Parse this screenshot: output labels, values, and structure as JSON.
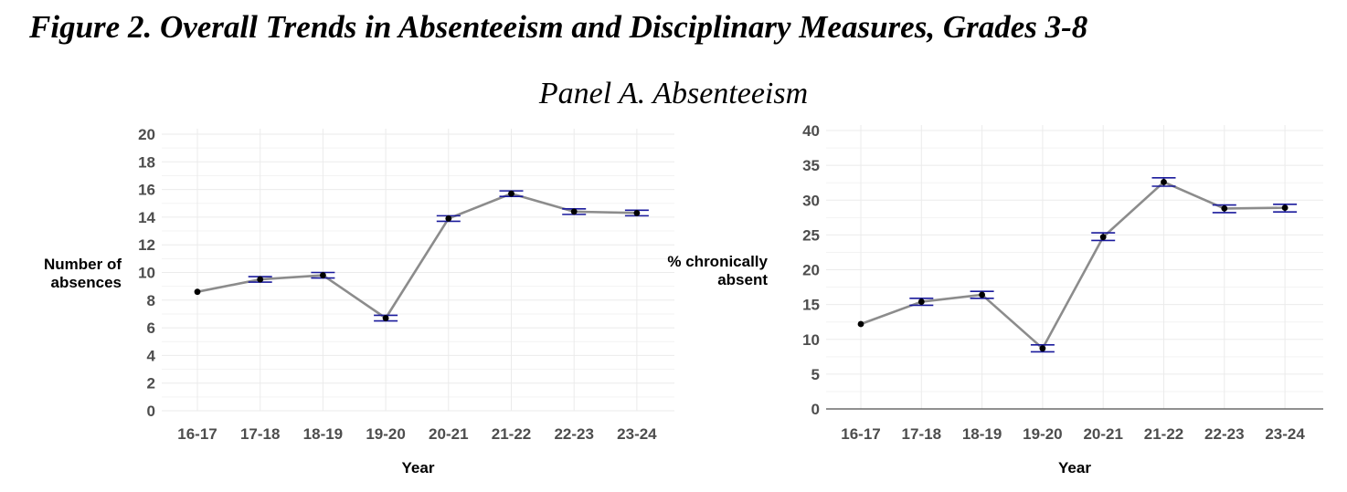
{
  "figure_title": "Figure 2. Overall Trends in Absenteeism and Disciplinary Measures, Grades 3-8",
  "panel_title": "Panel A. Absenteeism",
  "chart_data": [
    {
      "type": "line",
      "categories": [
        "16-17",
        "17-18",
        "18-19",
        "19-20",
        "20-21",
        "21-22",
        "22-23",
        "23-24"
      ],
      "series": [
        {
          "values": [
            8.6,
            9.5,
            9.8,
            6.7,
            13.9,
            15.7,
            14.4,
            14.3
          ],
          "error_low": [
            8.6,
            9.3,
            9.6,
            6.5,
            13.7,
            15.5,
            14.2,
            14.1
          ],
          "error_high": [
            8.6,
            9.7,
            10.0,
            6.9,
            14.1,
            15.9,
            14.6,
            14.5
          ]
        }
      ],
      "xlabel": "Year",
      "ylabel": [
        "Number of",
        "absences"
      ],
      "ylim": [
        0,
        20
      ],
      "yticks": [
        0,
        2,
        4,
        6,
        8,
        10,
        12,
        14,
        16,
        18,
        20
      ],
      "grid": true,
      "colors": {
        "line": "#8c8c8c",
        "point": "#000000",
        "errorbar": "#1a1a9c"
      }
    },
    {
      "type": "line",
      "categories": [
        "16-17",
        "17-18",
        "18-19",
        "19-20",
        "20-21",
        "21-22",
        "22-23",
        "23-24"
      ],
      "series": [
        {
          "values": [
            12.2,
            15.4,
            16.4,
            8.7,
            24.7,
            32.6,
            28.8,
            28.9
          ],
          "error_low": [
            12.2,
            14.9,
            15.9,
            8.2,
            24.2,
            32.0,
            28.2,
            28.3
          ],
          "error_high": [
            12.2,
            15.9,
            16.9,
            9.2,
            25.3,
            33.2,
            29.3,
            29.4
          ]
        }
      ],
      "xlabel": "Year",
      "ylabel": [
        "% chronically",
        "absent"
      ],
      "ylim": [
        0,
        40
      ],
      "yticks": [
        0,
        5,
        10,
        15,
        20,
        25,
        30,
        35,
        40
      ],
      "grid": true,
      "colors": {
        "line": "#8c8c8c",
        "point": "#000000",
        "errorbar": "#1a1a9c"
      }
    }
  ]
}
